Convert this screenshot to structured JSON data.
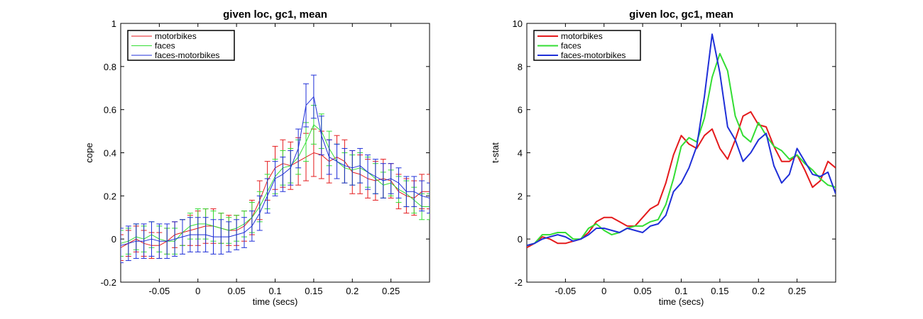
{
  "chart_data": [
    {
      "type": "line",
      "title": "given loc, gc1, mean",
      "xlabel": "time (secs)",
      "ylabel": "cope",
      "xlim": [
        -0.1,
        0.3
      ],
      "ylim": [
        -0.2,
        1.0
      ],
      "xticks": [
        -0.05,
        0,
        0.05,
        0.1,
        0.15,
        0.2,
        0.25
      ],
      "xtick_labels": [
        "-0.05",
        "0",
        "0.05",
        "0.1",
        "0.15",
        "0.2",
        "0.25"
      ],
      "yticks": [
        -0.2,
        0,
        0.2,
        0.4,
        0.6,
        0.8,
        1.0
      ],
      "ytick_labels": [
        "-0.2",
        "0",
        "0.2",
        "0.4",
        "0.6",
        "0.8",
        "1"
      ],
      "grid": false,
      "legend_position": "top-left",
      "error_bars": true,
      "x": [
        -0.1,
        -0.09,
        -0.08,
        -0.07,
        -0.06,
        -0.05,
        -0.04,
        -0.03,
        -0.02,
        -0.01,
        0,
        0.01,
        0.02,
        0.03,
        0.04,
        0.05,
        0.06,
        0.07,
        0.08,
        0.09,
        0.1,
        0.11,
        0.12,
        0.13,
        0.14,
        0.15,
        0.16,
        0.17,
        0.18,
        0.19,
        0.2,
        0.21,
        0.22,
        0.23,
        0.24,
        0.25,
        0.26,
        0.27,
        0.28,
        0.29,
        0.3
      ],
      "series": [
        {
          "name": "motorbikes",
          "color": "#e41a1c",
          "values": [
            -0.04,
            -0.02,
            0.0,
            -0.02,
            -0.03,
            -0.03,
            -0.01,
            0.02,
            0.03,
            0.04,
            0.05,
            0.06,
            0.06,
            0.05,
            0.04,
            0.04,
            0.06,
            0.1,
            0.18,
            0.27,
            0.33,
            0.35,
            0.34,
            0.36,
            0.38,
            0.4,
            0.39,
            0.36,
            0.38,
            0.36,
            0.31,
            0.3,
            0.28,
            0.27,
            0.28,
            0.27,
            0.22,
            0.2,
            0.19,
            0.22,
            0.22
          ],
          "errors": [
            0.06,
            0.06,
            0.06,
            0.06,
            0.06,
            0.06,
            0.06,
            0.06,
            0.06,
            0.07,
            0.08,
            0.08,
            0.08,
            0.07,
            0.07,
            0.07,
            0.07,
            0.08,
            0.09,
            0.09,
            0.1,
            0.11,
            0.11,
            0.11,
            0.11,
            0.11,
            0.11,
            0.1,
            0.1,
            0.1,
            0.1,
            0.09,
            0.09,
            0.09,
            0.09,
            0.08,
            0.08,
            0.08,
            0.08,
            0.08,
            0.08
          ]
        },
        {
          "name": "faces",
          "color": "#33dd33",
          "values": [
            -0.02,
            -0.01,
            0.01,
            0.0,
            0.02,
            0.0,
            -0.01,
            -0.01,
            0.03,
            0.06,
            0.07,
            0.07,
            0.06,
            0.05,
            0.04,
            0.05,
            0.07,
            0.1,
            0.15,
            0.22,
            0.29,
            0.33,
            0.34,
            0.38,
            0.45,
            0.53,
            0.5,
            0.42,
            0.36,
            0.33,
            0.32,
            0.33,
            0.31,
            0.28,
            0.25,
            0.26,
            0.23,
            0.21,
            0.18,
            0.15,
            0.15
          ],
          "errors": [
            0.06,
            0.06,
            0.06,
            0.06,
            0.06,
            0.06,
            0.06,
            0.06,
            0.06,
            0.06,
            0.07,
            0.07,
            0.07,
            0.07,
            0.06,
            0.06,
            0.06,
            0.07,
            0.07,
            0.08,
            0.08,
            0.08,
            0.08,
            0.08,
            0.09,
            0.09,
            0.08,
            0.08,
            0.08,
            0.07,
            0.07,
            0.07,
            0.07,
            0.07,
            0.06,
            0.06,
            0.06,
            0.06,
            0.06,
            0.06,
            0.06
          ]
        },
        {
          "name": "faces-motorbikes",
          "color": "#1f2fd8",
          "values": [
            -0.03,
            -0.02,
            -0.01,
            -0.01,
            0.0,
            -0.01,
            -0.01,
            0.0,
            0.01,
            0.02,
            0.02,
            0.02,
            0.01,
            0.01,
            0.01,
            0.02,
            0.03,
            0.06,
            0.12,
            0.2,
            0.28,
            0.3,
            0.33,
            0.42,
            0.62,
            0.66,
            0.48,
            0.38,
            0.36,
            0.34,
            0.33,
            0.34,
            0.31,
            0.29,
            0.27,
            0.28,
            0.26,
            0.22,
            0.22,
            0.2,
            0.19
          ],
          "errors": [
            0.08,
            0.08,
            0.08,
            0.08,
            0.08,
            0.08,
            0.08,
            0.08,
            0.08,
            0.08,
            0.08,
            0.08,
            0.08,
            0.08,
            0.07,
            0.07,
            0.07,
            0.07,
            0.08,
            0.08,
            0.08,
            0.08,
            0.08,
            0.09,
            0.1,
            0.1,
            0.09,
            0.08,
            0.08,
            0.08,
            0.08,
            0.08,
            0.08,
            0.08,
            0.08,
            0.07,
            0.07,
            0.07,
            0.07,
            0.07,
            0.07
          ]
        }
      ]
    },
    {
      "type": "line",
      "title": "given loc, gc1, mean",
      "xlabel": "time (secs)",
      "ylabel": "t-stat",
      "xlim": [
        -0.1,
        0.3
      ],
      "ylim": [
        -2,
        10
      ],
      "xticks": [
        -0.05,
        0,
        0.05,
        0.1,
        0.15,
        0.2,
        0.25
      ],
      "xtick_labels": [
        "-0.05",
        "0",
        "0.05",
        "0.1",
        "0.15",
        "0.2",
        "0.25"
      ],
      "yticks": [
        -2,
        0,
        2,
        4,
        6,
        8,
        10
      ],
      "ytick_labels": [
        "-2",
        "0",
        "2",
        "4",
        "6",
        "8",
        "10"
      ],
      "grid": false,
      "legend_position": "top-left",
      "x": [
        -0.1,
        -0.09,
        -0.08,
        -0.07,
        -0.06,
        -0.05,
        -0.04,
        -0.03,
        -0.02,
        -0.01,
        0,
        0.01,
        0.02,
        0.03,
        0.04,
        0.05,
        0.06,
        0.07,
        0.08,
        0.09,
        0.1,
        0.11,
        0.12,
        0.13,
        0.14,
        0.15,
        0.16,
        0.17,
        0.18,
        0.19,
        0.2,
        0.21,
        0.22,
        0.23,
        0.24,
        0.25,
        0.26,
        0.27,
        0.28,
        0.29,
        0.3
      ],
      "series": [
        {
          "name": "motorbikes",
          "color": "#e41a1c",
          "values": [
            -0.4,
            -0.2,
            0.1,
            0.0,
            -0.2,
            -0.2,
            -0.1,
            0.0,
            0.3,
            0.8,
            1.0,
            1.0,
            0.8,
            0.6,
            0.6,
            1.0,
            1.4,
            1.6,
            2.6,
            3.9,
            4.8,
            4.4,
            4.2,
            4.8,
            5.1,
            4.2,
            3.7,
            4.6,
            5.7,
            5.9,
            5.3,
            5.2,
            4.3,
            3.6,
            3.6,
            3.9,
            3.2,
            2.4,
            2.7,
            3.6,
            3.3
          ]
        },
        {
          "name": "faces",
          "color": "#33dd33",
          "values": [
            -0.3,
            -0.2,
            0.2,
            0.2,
            0.3,
            0.3,
            0.0,
            0.0,
            0.5,
            0.7,
            0.4,
            0.2,
            0.3,
            0.5,
            0.6,
            0.6,
            0.8,
            0.9,
            1.6,
            2.8,
            4.3,
            4.7,
            4.5,
            5.6,
            7.5,
            8.6,
            7.8,
            5.7,
            4.8,
            4.5,
            5.4,
            4.8,
            4.3,
            4.1,
            3.7,
            3.9,
            3.5,
            3.2,
            2.8,
            2.5,
            2.4
          ]
        },
        {
          "name": "faces-motorbikes",
          "color": "#1f2fd8",
          "values": [
            -0.3,
            -0.2,
            0.0,
            0.1,
            0.2,
            0.1,
            -0.1,
            0.0,
            0.2,
            0.5,
            0.5,
            0.4,
            0.3,
            0.5,
            0.4,
            0.3,
            0.6,
            0.7,
            1.1,
            2.2,
            2.6,
            3.3,
            4.3,
            6.6,
            9.5,
            7.7,
            5.2,
            4.6,
            3.6,
            4.0,
            4.6,
            4.9,
            3.4,
            2.6,
            3.0,
            4.2,
            3.6,
            3.0,
            2.9,
            3.1,
            2.1
          ]
        }
      ]
    }
  ]
}
